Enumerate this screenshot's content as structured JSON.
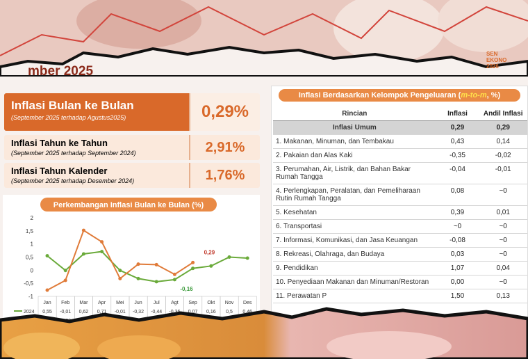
{
  "header": {
    "subtitle": "mber 2025",
    "logo": [
      "SEN",
      "EKONO",
      "2026"
    ]
  },
  "cards": [
    {
      "title": "Inflasi Bulan ke Bulan",
      "note": "(September 2025 terhadap Agustus2025)",
      "value": "0,29%"
    },
    {
      "title": "Inflasi Tahun ke Tahun",
      "note": "(September 2025 terhadap September 2024)",
      "value": "2,91%"
    },
    {
      "title": "Inflasi Tahun Kalender",
      "note": "(September 2025 terhadap Desember 2024)",
      "value": "1,76%"
    }
  ],
  "chart_data": {
    "type": "line",
    "title": "Perkembangan Inflasi Bulan ke Bulan (%)",
    "categories": [
      "Jan",
      "Feb",
      "Mar",
      "Apr",
      "Mei",
      "Jun",
      "Jul",
      "Agt",
      "Sep",
      "Okt",
      "Nov",
      "Des"
    ],
    "series": [
      {
        "name": "2024",
        "color": "#6aaa3a",
        "values": [
          0.55,
          -0.01,
          0.62,
          0.71,
          -0.01,
          -0.32,
          -0.44,
          -0.36,
          0.07,
          0.16,
          0.5,
          0.46
        ],
        "value_labels": [
          "0,55",
          "-0,01",
          "0,62",
          "0,71",
          "-0,01",
          "-0,32",
          "-0,44",
          "-0,36",
          "0,07",
          "0,16",
          "0,5",
          "0,46"
        ]
      },
      {
        "name": "2025",
        "color": "#e07b39",
        "values": [
          -0.76,
          -0.39,
          1.52,
          1.08,
          -0.32,
          0.23,
          0.21,
          -0.16,
          0.29,
          null,
          null,
          null
        ],
        "value_labels": [
          "-0,76",
          "-0,39",
          "1,52",
          "1,08",
          "-0,32",
          "0,23",
          "0,21",
          "-0,16",
          "0,29",
          null,
          null,
          null
        ]
      }
    ],
    "ylim": [
      -1,
      2
    ],
    "yticks": [
      2,
      {
        "value": 1.5,
        "label": "1,5"
      },
      1,
      {
        "value": 0.5,
        "label": "0,5"
      },
      0,
      {
        "value": -0.5,
        "label": "-0,5"
      },
      -1
    ],
    "annotations": [
      "0,29",
      "-0,16"
    ]
  },
  "table": {
    "title": [
      "Inflasi Berdasarkan Kelompok Pengeluaran (",
      "m-to-m",
      ", %)"
    ],
    "header": [
      "Rincian",
      "Inflasi",
      "Andil Inflasi"
    ],
    "rows": [
      [
        "Inflasi Umum",
        "0,29",
        "0,29"
      ],
      [
        "1.  Makanan, Minuman, dan Tembakau",
        "0,43",
        "0,14"
      ],
      [
        "2.  Pakaian dan Alas Kaki",
        "-0,35",
        "-0,02"
      ],
      [
        "3.  Perumahan, Air, Listrik, dan Bahan Bakar Rumah Tangga",
        "-0,04",
        "-0,01"
      ],
      [
        "4.  Perlengkapan, Peralatan, dan Pemeliharaan Rutin Rumah Tangga",
        "0,08",
        "~0"
      ],
      [
        "5.  Kesehatan",
        "0,39",
        "0,01"
      ],
      [
        "6.  Transportasi",
        "~0",
        "~0"
      ],
      [
        "7.  Informasi, Komunikasi, dan Jasa Keuangan",
        "-0,08",
        "~0"
      ],
      [
        "8.  Rekreasi, Olahraga, dan Budaya",
        "0,03",
        "~0"
      ],
      [
        "9.  Pendidikan",
        "1,07",
        "0,04"
      ],
      [
        "10. Penyediaan Makanan dan Minuman/Restoran",
        "0,00",
        "~0"
      ],
      [
        "11. Perawatan P",
        "1,50",
        "0,13"
      ]
    ]
  }
}
